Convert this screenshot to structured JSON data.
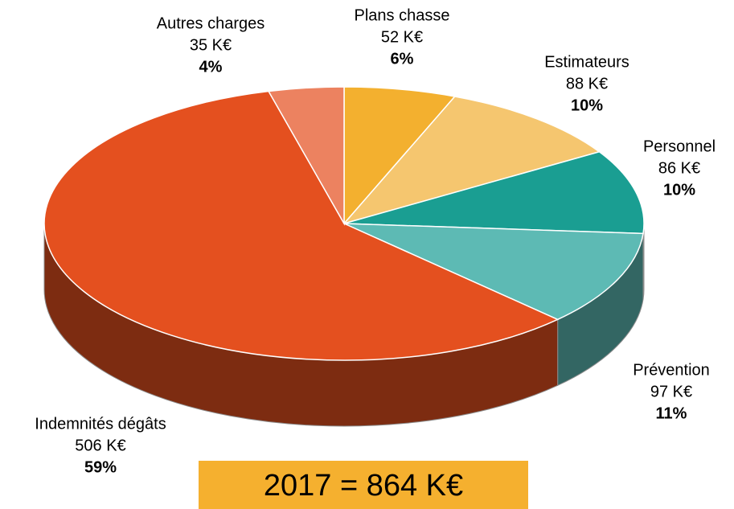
{
  "chart_data": {
    "type": "pie",
    "categories": [
      "Plans chasse",
      "Estimateurs",
      "Personnel",
      "Prévention",
      "Indemnités dégâts",
      "Autres charges"
    ],
    "values": [
      52,
      88,
      86,
      97,
      506,
      35
    ],
    "value_labels": [
      "52 K€",
      "88 K€",
      "86 K€",
      "97 K€",
      "506 K€",
      "35 K€"
    ],
    "percents": [
      6,
      10,
      10,
      11,
      59,
      4
    ],
    "percent_labels": [
      "6%",
      "10%",
      "10%",
      "11%",
      "59%",
      "4%"
    ],
    "colors": [
      "#f3b02f",
      "#f5c66f",
      "#1a9e92",
      "#5dbab4",
      "#e4501f",
      "#ec8260"
    ],
    "total_label": "2017 = 864 K€"
  }
}
